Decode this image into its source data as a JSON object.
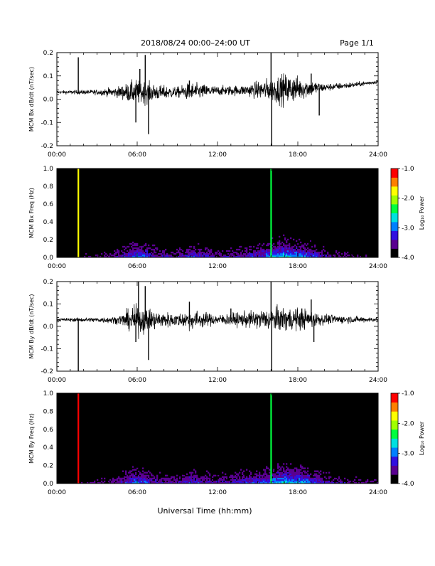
{
  "header": {
    "title": "2018/08/24  00:00–24:00 UT",
    "page": "Page 1/1"
  },
  "xlabel": "Universal Time (hh:mm)",
  "x_tick_labels": [
    "00:00",
    "06:00",
    "12:00",
    "18:00",
    "24:00"
  ],
  "colorbar": {
    "label": "Log₁₀ Power",
    "ticks": [
      "-1.0",
      "-2.0",
      "-3.0",
      "-4.0"
    ],
    "range": [
      -4.0,
      -1.0
    ],
    "colors": [
      "#000000",
      "#5a0090",
      "#3010e0",
      "#0080ff",
      "#00e0e0",
      "#00ff40",
      "#a0ff00",
      "#ffff00",
      "#ff8000",
      "#ff0000"
    ]
  },
  "chart_data": [
    {
      "type": "line",
      "title": "",
      "ylabel": "MCM Bx dB/dt (nT/sec)",
      "xlim": [
        0,
        24
      ],
      "ylim": [
        -0.2,
        0.2
      ],
      "y_tick_labels": [
        "0.2",
        "0.1",
        "0.0",
        "-0.1",
        "-0.2"
      ],
      "baseline": [
        [
          0,
          0.03
        ],
        [
          5,
          0.03
        ],
        [
          8,
          0.028
        ],
        [
          12,
          0.036
        ],
        [
          16,
          0.04
        ],
        [
          20,
          0.05
        ],
        [
          22,
          0.06
        ],
        [
          24,
          0.075
        ]
      ],
      "envelope": [
        [
          0,
          0.006
        ],
        [
          3,
          0.01
        ],
        [
          4.5,
          0.02
        ],
        [
          6,
          0.05
        ],
        [
          7.5,
          0.03
        ],
        [
          9,
          0.02
        ],
        [
          10,
          0.035
        ],
        [
          12,
          0.018
        ],
        [
          14,
          0.02
        ],
        [
          15.5,
          0.04
        ],
        [
          17,
          0.06
        ],
        [
          18.5,
          0.04
        ],
        [
          20,
          0.015
        ],
        [
          24,
          0.006
        ]
      ],
      "spikes": [
        [
          1.6,
          0.18
        ],
        [
          5.9,
          -0.1
        ],
        [
          6.2,
          0.13
        ],
        [
          6.6,
          0.19
        ],
        [
          6.85,
          -0.15
        ],
        [
          9.9,
          0.08
        ],
        [
          16.0,
          0.2
        ],
        [
          16.05,
          -0.2
        ],
        [
          17.7,
          0.08
        ],
        [
          19.0,
          0.11
        ],
        [
          19.6,
          -0.07
        ]
      ]
    },
    {
      "type": "heatmap",
      "title": "",
      "ylabel": "MCM Bx Freq (Hz)",
      "xlim": [
        0,
        24
      ],
      "ylim": [
        0,
        1.0
      ],
      "y_tick_labels": [
        "1.0",
        "0.8",
        "0.6",
        "0.4",
        "0.2",
        "0.0"
      ],
      "value_range": [
        -4.0,
        -1.0
      ],
      "activity": [
        [
          0,
          0.1
        ],
        [
          3,
          0.25
        ],
        [
          4.5,
          0.35
        ],
        [
          6,
          0.7
        ],
        [
          7.5,
          0.4
        ],
        [
          9,
          0.35
        ],
        [
          10,
          0.55
        ],
        [
          12,
          0.35
        ],
        [
          14,
          0.45
        ],
        [
          15.5,
          0.6
        ],
        [
          17,
          0.85
        ],
        [
          18.5,
          0.7
        ],
        [
          20,
          0.4
        ],
        [
          22,
          0.25
        ],
        [
          24,
          0.2
        ]
      ],
      "lines": [
        [
          1.6,
          -1.8
        ],
        [
          16.0,
          -2.4
        ]
      ]
    },
    {
      "type": "line",
      "title": "",
      "ylabel": "MCM By dB/dt (nT/sec)",
      "xlim": [
        0,
        24
      ],
      "ylim": [
        -0.2,
        0.2
      ],
      "y_tick_labels": [
        "0.2",
        "0.1",
        "0.0",
        "-0.1",
        "-0.2"
      ],
      "baseline": [
        [
          0,
          0.03
        ],
        [
          6,
          0.028
        ],
        [
          12,
          0.03
        ],
        [
          18,
          0.032
        ],
        [
          24,
          0.03
        ]
      ],
      "envelope": [
        [
          0,
          0.006
        ],
        [
          3,
          0.01
        ],
        [
          4.5,
          0.015
        ],
        [
          6,
          0.06
        ],
        [
          7.5,
          0.035
        ],
        [
          9,
          0.025
        ],
        [
          10,
          0.04
        ],
        [
          12,
          0.02
        ],
        [
          14,
          0.03
        ],
        [
          15.5,
          0.04
        ],
        [
          17,
          0.05
        ],
        [
          18.5,
          0.04
        ],
        [
          20,
          0.02
        ],
        [
          24,
          0.008
        ]
      ],
      "spikes": [
        [
          1.6,
          -0.2
        ],
        [
          5.9,
          -0.07
        ],
        [
          6.1,
          0.21
        ],
        [
          6.6,
          0.18
        ],
        [
          6.85,
          -0.15
        ],
        [
          9.9,
          0.11
        ],
        [
          13.0,
          0.08
        ],
        [
          16.0,
          0.2
        ],
        [
          16.05,
          -0.2
        ],
        [
          18.3,
          0.08
        ],
        [
          19.0,
          0.12
        ],
        [
          19.2,
          -0.07
        ]
      ]
    },
    {
      "type": "heatmap",
      "title": "",
      "ylabel": "MCM By Freq (Hz)",
      "xlim": [
        0,
        24
      ],
      "ylim": [
        0,
        1.0
      ],
      "y_tick_labels": [
        "1.0",
        "0.8",
        "0.6",
        "0.4",
        "0.2",
        "0.0"
      ],
      "value_range": [
        -4.0,
        -1.0
      ],
      "activity": [
        [
          0,
          0.1
        ],
        [
          3,
          0.25
        ],
        [
          4.5,
          0.35
        ],
        [
          6,
          0.7
        ],
        [
          7.5,
          0.4
        ],
        [
          9,
          0.4
        ],
        [
          10,
          0.55
        ],
        [
          12,
          0.4
        ],
        [
          14,
          0.5
        ],
        [
          15.5,
          0.6
        ],
        [
          17,
          0.85
        ],
        [
          18.5,
          0.75
        ],
        [
          20,
          0.45
        ],
        [
          22,
          0.3
        ],
        [
          24,
          0.25
        ]
      ],
      "lines": [
        [
          1.6,
          -1.3
        ],
        [
          16.0,
          -2.4
        ]
      ]
    }
  ]
}
